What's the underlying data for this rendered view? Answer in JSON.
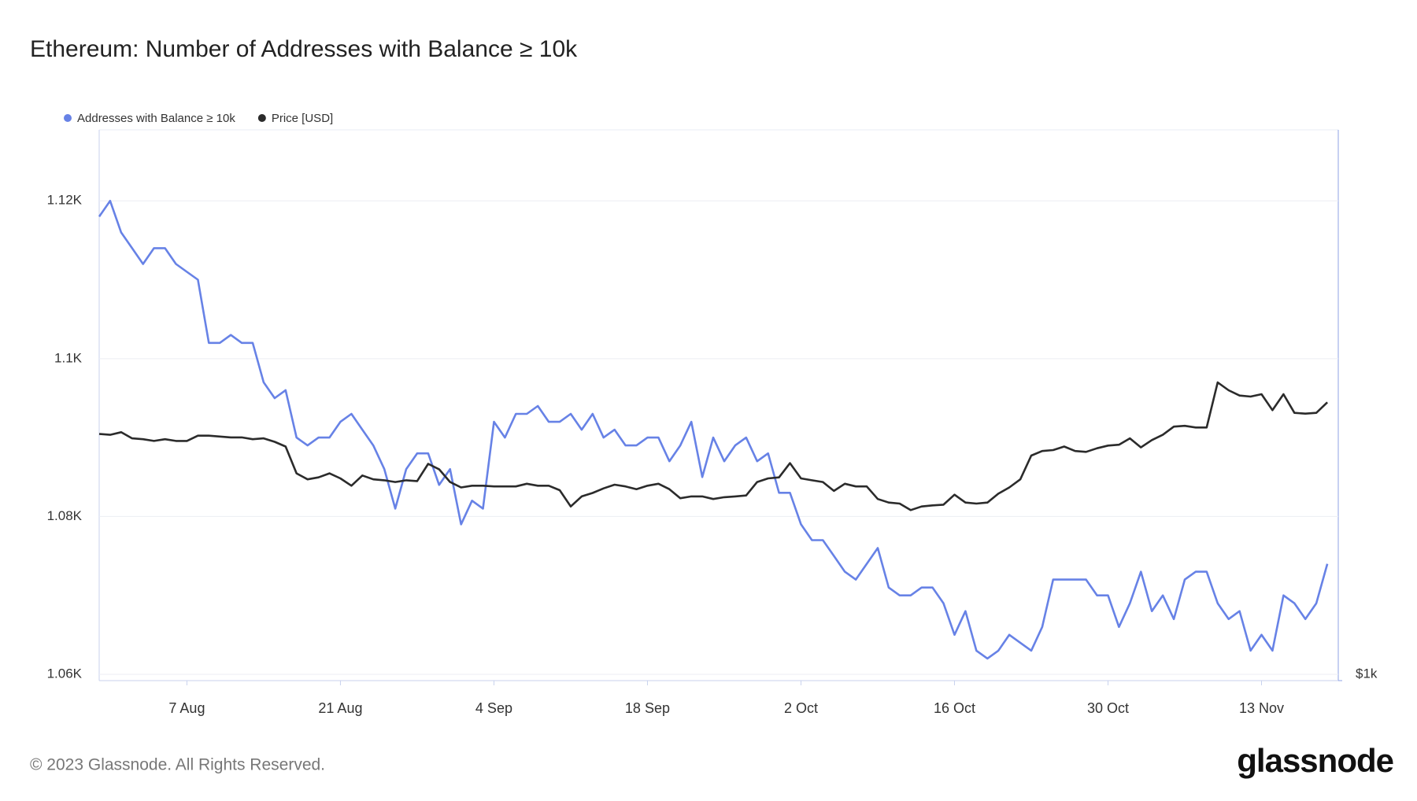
{
  "chart_data": {
    "type": "line",
    "title": "Ethereum: Number of Addresses with Balance ≥ 10k",
    "footer": "© 2023 Glassnode. All Rights Reserved.",
    "brand": "glassnode",
    "x": [
      "30 Jul",
      "31 Jul",
      "1 Aug",
      "2 Aug",
      "3 Aug",
      "4 Aug",
      "5 Aug",
      "6 Aug",
      "7 Aug",
      "8 Aug",
      "9 Aug",
      "10 Aug",
      "11 Aug",
      "12 Aug",
      "13 Aug",
      "14 Aug",
      "15 Aug",
      "16 Aug",
      "17 Aug",
      "18 Aug",
      "19 Aug",
      "20 Aug",
      "21 Aug",
      "22 Aug",
      "23 Aug",
      "24 Aug",
      "25 Aug",
      "26 Aug",
      "27 Aug",
      "28 Aug",
      "29 Aug",
      "30 Aug",
      "31 Aug",
      "1 Sep",
      "2 Sep",
      "3 Sep",
      "4 Sep",
      "5 Sep",
      "6 Sep",
      "7 Sep",
      "8 Sep",
      "9 Sep",
      "10 Sep",
      "11 Sep",
      "12 Sep",
      "13 Sep",
      "14 Sep",
      "15 Sep",
      "16 Sep",
      "17 Sep",
      "18 Sep",
      "19 Sep",
      "20 Sep",
      "21 Sep",
      "22 Sep",
      "23 Sep",
      "24 Sep",
      "25 Sep",
      "26 Sep",
      "27 Sep",
      "28 Sep",
      "29 Sep",
      "30 Sep",
      "1 Oct",
      "2 Oct",
      "3 Oct",
      "4 Oct",
      "5 Oct",
      "6 Oct",
      "7 Oct",
      "8 Oct",
      "9 Oct",
      "10 Oct",
      "11 Oct",
      "12 Oct",
      "13 Oct",
      "14 Oct",
      "15 Oct",
      "16 Oct",
      "17 Oct",
      "18 Oct",
      "19 Oct",
      "20 Oct",
      "21 Oct",
      "22 Oct",
      "23 Oct",
      "24 Oct",
      "25 Oct",
      "26 Oct",
      "27 Oct",
      "28 Oct",
      "29 Oct",
      "30 Oct",
      "31 Oct",
      "1 Nov",
      "2 Nov",
      "3 Nov",
      "4 Nov",
      "5 Nov",
      "6 Nov",
      "7 Nov",
      "8 Nov",
      "9 Nov",
      "10 Nov",
      "11 Nov",
      "12 Nov",
      "13 Nov",
      "14 Nov",
      "15 Nov",
      "16 Nov",
      "17 Nov",
      "18 Nov",
      "19 Nov"
    ],
    "xticks": [
      "7 Aug",
      "21 Aug",
      "4 Sep",
      "18 Sep",
      "2 Oct",
      "16 Oct",
      "30 Oct",
      "13 Nov"
    ],
    "series": [
      {
        "name": "Addresses with Balance ≥ 10k",
        "color": "#6782e6",
        "axis": "y",
        "values": [
          1118,
          1120,
          1116,
          1114,
          1112,
          1114,
          1114,
          1112,
          1111,
          1110,
          1102,
          1102,
          1103,
          1102,
          1102,
          1097,
          1095,
          1096,
          1090,
          1089,
          1090,
          1090,
          1092,
          1093,
          1091,
          1089,
          1086,
          1081,
          1086,
          1088,
          1088,
          1084,
          1086,
          1079,
          1082,
          1081,
          1092,
          1090,
          1093,
          1093,
          1094,
          1092,
          1092,
          1093,
          1091,
          1093,
          1090,
          1091,
          1089,
          1089,
          1090,
          1090,
          1087,
          1089,
          1092,
          1085,
          1090,
          1087,
          1089,
          1090,
          1087,
          1088,
          1083,
          1083,
          1079,
          1077,
          1077,
          1075,
          1073,
          1072,
          1074,
          1076,
          1071,
          1070,
          1070,
          1071,
          1071,
          1069,
          1065,
          1068,
          1063,
          1062,
          1063,
          1065,
          1064,
          1063,
          1066,
          1072,
          1072,
          1072,
          1072,
          1070,
          1070,
          1066,
          1069,
          1073,
          1068,
          1070,
          1067,
          1072,
          1073,
          1073,
          1069,
          1067,
          1068,
          1063,
          1065,
          1063,
          1070,
          1069,
          1067,
          1069,
          1074
        ]
      },
      {
        "name": "Price [USD]",
        "color": "#2b2b2b",
        "axis": "y2",
        "values": [
          1850,
          1846,
          1858,
          1830,
          1826,
          1818,
          1826,
          1818,
          1818,
          1842,
          1842,
          1838,
          1834,
          1834,
          1826,
          1830,
          1814,
          1793,
          1677,
          1652,
          1660,
          1677,
          1656,
          1626,
          1668,
          1652,
          1648,
          1641,
          1648,
          1645,
          1717,
          1694,
          1641,
          1619,
          1626,
          1626,
          1623,
          1623,
          1623,
          1634,
          1626,
          1626,
          1608,
          1544,
          1583,
          1597,
          1615,
          1630,
          1623,
          1612,
          1626,
          1634,
          1612,
          1576,
          1583,
          1583,
          1573,
          1580,
          1583,
          1587,
          1641,
          1656,
          1660,
          1720,
          1656,
          1648,
          1641,
          1605,
          1634,
          1623,
          1623,
          1573,
          1559,
          1555,
          1530,
          1544,
          1548,
          1551,
          1590,
          1559,
          1555,
          1559,
          1594,
          1619,
          1652,
          1753,
          1773,
          1777,
          1793,
          1773,
          1769,
          1785,
          1797,
          1801,
          1830,
          1789,
          1822,
          1846,
          1884,
          1888,
          1880,
          1880,
          2104,
          2063,
          2036,
          2031,
          2043,
          1963,
          2043,
          1950,
          1946,
          1950,
          2002
        ]
      }
    ],
    "ylim": [
      1059.2,
      1129
    ],
    "yticks": [
      {
        "value": 1060,
        "label": "1.06K"
      },
      {
        "value": 1080,
        "label": "1.08K"
      },
      {
        "value": 1100,
        "label": "1.1K"
      },
      {
        "value": 1120,
        "label": "1.12K"
      }
    ],
    "y2lim": [
      1000,
      3950
    ],
    "y2log": true,
    "y2ticks": [
      {
        "value": 1000,
        "label": "$1k"
      }
    ],
    "grid": true
  }
}
